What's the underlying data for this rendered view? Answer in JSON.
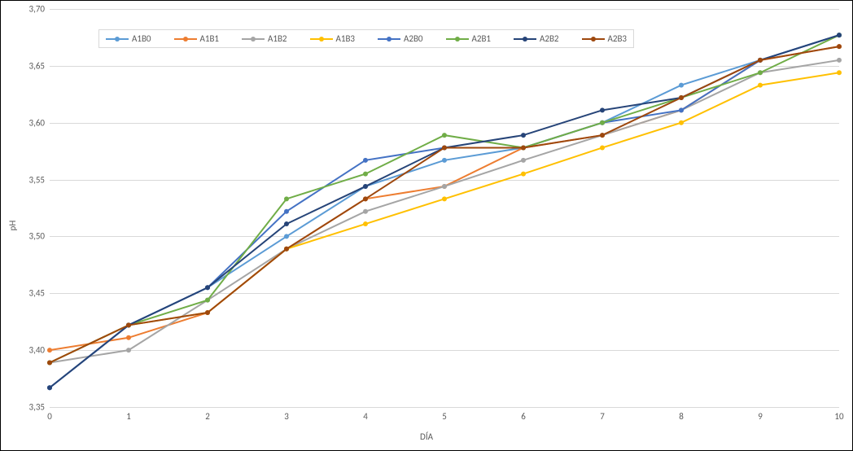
{
  "chart": {
    "type": "line",
    "background_color": "#ffffff",
    "grid_color": "#d9d9d9",
    "border_color": "#000000",
    "text_color": "#595959",
    "tick_fontsize": 11,
    "axis_title_fontsize": 11,
    "xlabel": "DÍA",
    "ylabel": "pH",
    "xlim": [
      0,
      10
    ],
    "ylim": [
      3.35,
      3.7
    ],
    "ytick_step": 0.05,
    "ytick_labels": [
      "3,35",
      "3,40",
      "3,45",
      "3,50",
      "3,55",
      "3,60",
      "3,65",
      "3,70"
    ],
    "xticks": [
      0,
      1,
      2,
      3,
      4,
      5,
      6,
      7,
      8,
      9,
      10
    ],
    "x_values": [
      0,
      1,
      2,
      3,
      4,
      5,
      6,
      7,
      8,
      9,
      10
    ],
    "line_width": 2,
    "marker_size": 6,
    "marker_style": "circle",
    "series": [
      {
        "name": "A1B0",
        "color": "#5b9bd5",
        "y": [
          3.367,
          3.422,
          3.455,
          3.5,
          3.544,
          3.567,
          3.578,
          3.6,
          3.633,
          3.655,
          3.677
        ]
      },
      {
        "name": "A1B1",
        "color": "#ed7d31",
        "y": [
          3.4,
          3.411,
          3.433,
          3.489,
          3.533,
          3.544,
          3.578,
          3.589,
          3.611,
          3.655,
          3.667
        ]
      },
      {
        "name": "A1B2",
        "color": "#a5a5a5",
        "y": [
          3.389,
          3.4,
          3.444,
          3.489,
          3.522,
          3.544,
          3.567,
          3.589,
          3.611,
          3.644,
          3.655
        ]
      },
      {
        "name": "A1B3",
        "color": "#ffc000",
        "y": [
          3.389,
          3.422,
          3.433,
          3.489,
          3.511,
          3.533,
          3.555,
          3.578,
          3.6,
          3.633,
          3.644
        ]
      },
      {
        "name": "A2B0",
        "color": "#4472c4",
        "y": [
          3.367,
          3.422,
          3.455,
          3.522,
          3.567,
          3.578,
          3.578,
          3.6,
          3.611,
          3.655,
          3.677
        ]
      },
      {
        "name": "A2B1",
        "color": "#70ad47",
        "y": [
          3.389,
          3.422,
          3.444,
          3.533,
          3.555,
          3.589,
          3.578,
          3.6,
          3.622,
          3.644,
          3.677
        ]
      },
      {
        "name": "A2B2",
        "color": "#264478",
        "y": [
          3.367,
          3.422,
          3.455,
          3.511,
          3.544,
          3.578,
          3.589,
          3.611,
          3.622,
          3.655,
          3.677
        ]
      },
      {
        "name": "A2B3",
        "color": "#9e480e",
        "y": [
          3.389,
          3.422,
          3.433,
          3.489,
          3.533,
          3.578,
          3.578,
          3.589,
          3.622,
          3.655,
          3.667
        ]
      }
    ],
    "legend": {
      "position": "top",
      "labels": [
        "A1B0",
        "A1B1",
        "A1B2",
        "A1B3",
        "A2B0",
        "A2B1",
        "A2B2",
        "A2B3"
      ]
    }
  }
}
